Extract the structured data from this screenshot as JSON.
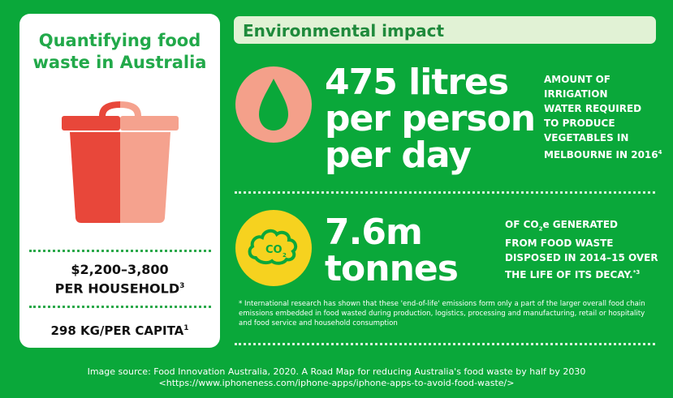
{
  "left": {
    "title_line1": "Quantifying food",
    "title_line2": "waste in Australia",
    "stat1_line1": "$2,200–3,800",
    "stat1_line2": "PER HOUSEHOLD",
    "stat1_sup": "3",
    "stat2": "298 KG/PER CAPITA",
    "stat2_sup": "1"
  },
  "right": {
    "banner": "Environmental impact",
    "water": {
      "big_line1": "475 litres",
      "big_line2": "per person",
      "big_line3": "per day",
      "desc_lines": [
        "AMOUNT OF",
        "IRRIGATION",
        "WATER REQUIRED",
        "TO PRODUCE",
        "VEGETABLES IN"
      ],
      "desc_last": "MELBOURNE IN 2016",
      "desc_sup": "4"
    },
    "co2": {
      "icon_text": "CO",
      "icon_sub": "2",
      "big_line1": "7.6m",
      "big_line2": "tonnes",
      "desc_l1_a": "OF CO",
      "desc_l1_sub": "2",
      "desc_l1_b": "e GENERATED",
      "desc_l2": "FROM FOOD WASTE",
      "desc_l3": "DISPOSED  IN 2014–15 OVER",
      "desc_l4": "THE LIFE OF ITS DECAY.",
      "desc_sup": "*3"
    },
    "footnote": "*  International research has shown that these 'end-of-life' emissions form only a part of the larger overall food chain emissions embedded in food wasted during production, logistics, processing and manufacturing, retail or hospitality and food service and household consumption"
  },
  "source": {
    "line1": "Image source:  Food Innovation Australia, 2020. A Road Map for reducing Australia's food waste by half by 2030",
    "line2": "<https://www.iphoneness.com/iphone-apps/iphone-apps-to-avoid-food-waste/>"
  },
  "colors": {
    "background_green": "#0aa83a",
    "title_green": "#22a94a",
    "banner_bg": "#e1f2d5",
    "bin_dark": "#e8473a",
    "bin_light": "#f5a28e",
    "water_circle": "#f4a08a",
    "co2_circle": "#f6d21f"
  },
  "icons": [
    "trash-bin-icon",
    "water-drop-icon",
    "co2-cloud-icon"
  ]
}
